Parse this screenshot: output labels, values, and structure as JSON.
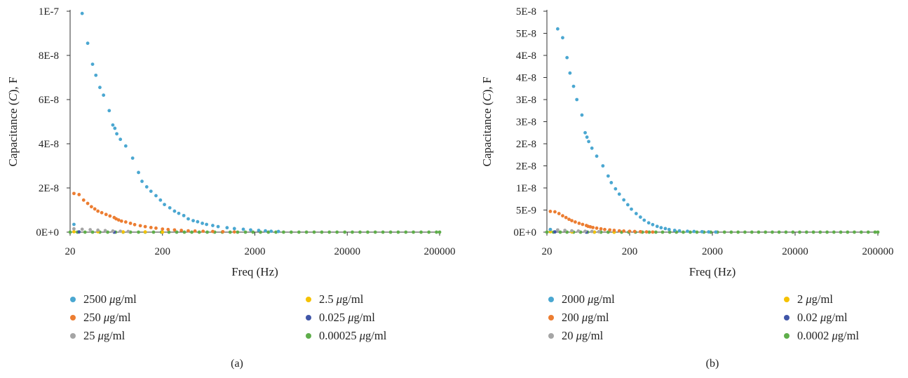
{
  "chart_data": [
    {
      "type": "scatter",
      "panel_label": "(a)",
      "xlabel": "Freq (Hz)",
      "ylabel_parts": [
        "Capacitance (",
        "C",
        "), F"
      ],
      "x_scale": "log",
      "xlim": [
        20,
        200000
      ],
      "ylim": [
        0,
        1e-07
      ],
      "x_ticks": [
        20,
        200,
        2000,
        20000,
        200000
      ],
      "x_tick_labels": [
        "20",
        "200",
        "2000",
        "20000",
        "200000"
      ],
      "y_ticks": [
        0,
        2e-08,
        4e-08,
        6e-08,
        8e-08,
        1e-07
      ],
      "y_tick_labels": [
        "0E+0",
        "2E-8",
        "4E-8",
        "6E-8",
        "8E-8",
        "1E-7"
      ],
      "grid": false,
      "legend_position": "bottom",
      "series": [
        {
          "name_value": "2500",
          "name_unit": "g/ml",
          "color": "#4aa7d1",
          "x": [
            22,
            27,
            31,
            35,
            38,
            42,
            46,
            53,
            58,
            61,
            64,
            70,
            80,
            95,
            110,
            120,
            135,
            150,
            170,
            190,
            210,
            240,
            270,
            300,
            340,
            380,
            430,
            480,
            540,
            600,
            700,
            800,
            1000,
            1200,
            1500,
            1800,
            2200,
            2600,
            3000,
            3600
          ],
          "y": [
            3.5e-09,
            9.9e-08,
            8.55e-08,
            7.6e-08,
            7.1e-08,
            6.55e-08,
            6.2e-08,
            5.5e-08,
            4.85e-08,
            4.7e-08,
            4.45e-08,
            4.2e-08,
            3.9e-08,
            3.35e-08,
            2.7e-08,
            2.3e-08,
            2.05e-08,
            1.85e-08,
            1.65e-08,
            1.45e-08,
            1.25e-08,
            1.1e-08,
            9.5e-09,
            8.5e-09,
            7.5e-09,
            6e-09,
            5.2e-09,
            4.7e-09,
            4e-09,
            3.5e-09,
            3e-09,
            2.5e-09,
            2e-09,
            1.6e-09,
            1.3e-09,
            1e-09,
            8e-10,
            6e-10,
            4e-10,
            3e-10
          ]
        },
        {
          "name_value": "250",
          "name_unit": "g/ml",
          "color": "#ec7d31",
          "x": [
            22,
            25,
            28,
            31,
            34,
            37,
            40,
            44,
            49,
            54,
            60,
            63,
            67,
            72,
            80,
            90,
            100,
            115,
            130,
            150,
            170,
            200,
            230,
            270,
            320,
            380,
            450,
            550,
            700,
            900,
            1200
          ],
          "y": [
            1.75e-08,
            1.7e-08,
            1.45e-08,
            1.3e-08,
            1.15e-08,
            1.05e-08,
            9.5e-09,
            8.8e-09,
            8e-09,
            7.3e-09,
            6.6e-09,
            6e-09,
            5.5e-09,
            5e-09,
            4.6e-09,
            4e-09,
            3.4e-09,
            2.9e-09,
            2.5e-09,
            2.1e-09,
            1.8e-09,
            1.4e-09,
            1.2e-09,
            1e-09,
            8e-10,
            6e-10,
            5e-10,
            4e-10,
            3e-10,
            2e-10,
            1e-10
          ]
        },
        {
          "name_value": "25",
          "name_unit": "g/ml",
          "color": "#a5a5a5",
          "x": [
            22,
            27,
            33,
            40,
            48,
            58,
            70,
            85
          ],
          "y": [
            1.5e-09,
            1.3e-09,
            1.1e-09,
            9e-10,
            7e-10,
            5e-10,
            4e-10,
            3e-10
          ]
        },
        {
          "name_value": "2.5",
          "name_unit": "g/ml",
          "color": "#f5c200",
          "x": [
            22,
            40,
            75,
            130,
            200
          ],
          "y": [
            2e-10,
            2e-10,
            1e-10,
            1e-10,
            0
          ]
        },
        {
          "name_value": "0.025",
          "name_unit": "g/ml",
          "color": "#4056a8",
          "x": [
            25,
            60
          ],
          "y": [
            1e-10,
            0
          ]
        },
        {
          "name_value": "0.00025",
          "name_unit": "g/ml",
          "color": "#5fae4b",
          "x": [
            20,
            24,
            29,
            35,
            42,
            51,
            62,
            75,
            90,
            110,
            130,
            160,
            195,
            235,
            285,
            345,
            415,
            500,
            610,
            735,
            890,
            1080,
            1300,
            1580,
            1910,
            2300,
            2800,
            3380,
            4090,
            4950,
            6000,
            7240,
            8760,
            10600,
            12800,
            15500,
            18800,
            22700,
            27500,
            33300,
            40200,
            48700,
            58900,
            71200,
            86100,
            104000,
            126000,
            153000,
            185000,
            200000
          ],
          "y": [
            0,
            0,
            0,
            0,
            0,
            0,
            0,
            0,
            0,
            0,
            0,
            0,
            0,
            0,
            0,
            0,
            0,
            0,
            0,
            0,
            0,
            0,
            0,
            0,
            0,
            0,
            0,
            0,
            0,
            0,
            0,
            0,
            0,
            0,
            0,
            0,
            0,
            0,
            0,
            0,
            0,
            0,
            0,
            0,
            0,
            0,
            0,
            0,
            0,
            0
          ]
        }
      ]
    },
    {
      "type": "scatter",
      "panel_label": "(b)",
      "xlabel": "Freq (Hz)",
      "ylabel_parts": [
        "Capacitance (",
        "C",
        "), F"
      ],
      "x_scale": "log",
      "xlim": [
        20,
        200000
      ],
      "ylim": [
        0,
        5e-08
      ],
      "x_ticks": [
        20,
        200,
        2000,
        20000,
        200000
      ],
      "x_tick_labels": [
        "20",
        "200",
        "2000",
        "20000",
        "200000"
      ],
      "y_ticks": [
        0,
        5e-09,
        1e-08,
        1.5e-08,
        2e-08,
        2.5e-08,
        3e-08,
        3.5e-08,
        4e-08,
        4.5e-08,
        5e-08
      ],
      "y_tick_labels": [
        "0E+0",
        "5E-9",
        "1E-8",
        "2E-8",
        "2E-8",
        "3E-8",
        "3E-8",
        "4E-8",
        "4E-8",
        "5E-8",
        "5E-8"
      ],
      "grid": false,
      "legend_position": "bottom",
      "series": [
        {
          "name_value": "2000",
          "name_unit": "g/ml",
          "color": "#4aa7d1",
          "x": [
            22,
            27,
            31,
            35,
            38,
            42,
            46,
            53,
            58,
            61,
            64,
            70,
            80,
            95,
            110,
            120,
            135,
            150,
            170,
            190,
            210,
            240,
            270,
            300,
            340,
            380,
            430,
            480,
            540,
            600,
            700,
            800,
            1000,
            1200,
            1500,
            1800,
            2200
          ],
          "y": [
            6e-10,
            4.6e-08,
            4.4e-08,
            3.95e-08,
            3.6e-08,
            3.3e-08,
            3e-08,
            2.65e-08,
            2.25e-08,
            2.15e-08,
            2.05e-08,
            1.9e-08,
            1.72e-08,
            1.5e-08,
            1.27e-08,
            1.12e-08,
            9.8e-09,
            8.6e-09,
            7.3e-09,
            6.2e-09,
            5.2e-09,
            4.2e-09,
            3.4e-09,
            2.7e-09,
            2.1e-09,
            1.7e-09,
            1.3e-09,
            1e-09,
            8e-10,
            6e-10,
            4e-10,
            3e-10,
            2e-10,
            1.5e-10,
            1e-10,
            5e-11,
            2e-11
          ]
        },
        {
          "name_value": "200",
          "name_unit": "g/ml",
          "color": "#ec7d31",
          "x": [
            22,
            25,
            28,
            31,
            34,
            37,
            40,
            44,
            49,
            54,
            60,
            63,
            67,
            72,
            80,
            90,
            100,
            115,
            130,
            150,
            170,
            200,
            230,
            270,
            320,
            380
          ],
          "y": [
            4.7e-09,
            4.6e-09,
            4.2e-09,
            3.7e-09,
            3.3e-09,
            2.9e-09,
            2.6e-09,
            2.3e-09,
            2e-09,
            1.75e-09,
            1.5e-09,
            1.3e-09,
            1.2e-09,
            1.05e-09,
            9e-10,
            7.5e-10,
            6e-10,
            5e-10,
            4e-10,
            3e-10,
            2.5e-10,
            2e-10,
            1.5e-10,
            1e-10,
            5e-11,
            2e-11
          ]
        },
        {
          "name_value": "20",
          "name_unit": "g/ml",
          "color": "#a5a5a5",
          "x": [
            22,
            27,
            33,
            40,
            48,
            58,
            70,
            85
          ],
          "y": [
            6e-10,
            5e-10,
            4e-10,
            3e-10,
            2.5e-10,
            2e-10,
            1.5e-10,
            1e-10
          ]
        },
        {
          "name_value": "2",
          "name_unit": "g/ml",
          "color": "#f5c200",
          "x": [
            22,
            40,
            75,
            130
          ],
          "y": [
            1e-10,
            5e-11,
            2e-11,
            0
          ]
        },
        {
          "name_value": "0.02",
          "name_unit": "g/ml",
          "color": "#4056a8",
          "x": [
            25,
            60
          ],
          "y": [
            5e-11,
            0
          ]
        },
        {
          "name_value": "0.0002",
          "name_unit": "g/ml",
          "color": "#5fae4b",
          "x": [
            20,
            24,
            29,
            35,
            42,
            51,
            62,
            75,
            90,
            110,
            130,
            160,
            195,
            235,
            285,
            345,
            415,
            500,
            610,
            735,
            890,
            1080,
            1300,
            1580,
            1910,
            2300,
            2800,
            3380,
            4090,
            4950,
            6000,
            7240,
            8760,
            10600,
            12800,
            15500,
            18800,
            22700,
            27500,
            33300,
            40200,
            48700,
            58900,
            71200,
            86100,
            104000,
            126000,
            153000,
            185000,
            200000
          ],
          "y": [
            0,
            0,
            0,
            0,
            0,
            0,
            0,
            0,
            0,
            0,
            0,
            0,
            0,
            0,
            0,
            0,
            0,
            0,
            0,
            0,
            0,
            0,
            0,
            0,
            0,
            0,
            0,
            0,
            0,
            0,
            0,
            0,
            0,
            0,
            0,
            0,
            0,
            0,
            0,
            0,
            0,
            0,
            0,
            0,
            0,
            0,
            0,
            0,
            0,
            0
          ]
        }
      ]
    }
  ]
}
